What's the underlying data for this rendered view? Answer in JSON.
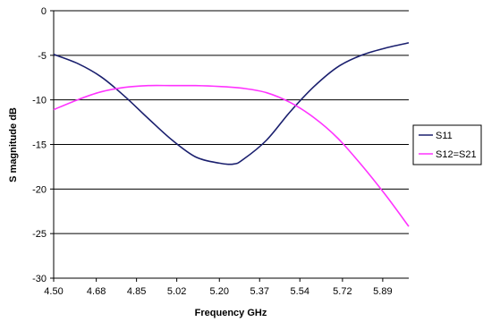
{
  "chart_data": {
    "type": "line",
    "title": "",
    "xlabel": "Frequency GHz",
    "ylabel": "S magnitude dB",
    "xlim": [
      4.5,
      6.0
    ],
    "ylim": [
      -30,
      0
    ],
    "x_ticks": [
      "4.50",
      "4.68",
      "4.85",
      "5.02",
      "5.20",
      "5.37",
      "5.54",
      "5.72",
      "5.89"
    ],
    "x_tick_values": [
      4.5,
      4.68,
      4.85,
      5.02,
      5.2,
      5.37,
      5.54,
      5.72,
      5.89
    ],
    "y_ticks": [
      "0",
      "-5",
      "-10",
      "-15",
      "-20",
      "-25",
      "-30"
    ],
    "y_tick_values": [
      0,
      -5,
      -10,
      -15,
      -20,
      -25,
      -30
    ],
    "grid": "horizontal",
    "legend_position": "right",
    "series": [
      {
        "name": "S11",
        "color": "#1a1f6e",
        "x": [
          4.5,
          4.6,
          4.7,
          4.8,
          4.9,
          5.0,
          5.1,
          5.2,
          5.26,
          5.3,
          5.4,
          5.5,
          5.6,
          5.7,
          5.8,
          5.9,
          6.0
        ],
        "y": [
          -4.9,
          -5.9,
          -7.4,
          -9.6,
          -12.1,
          -14.5,
          -16.4,
          -17.1,
          -17.2,
          -16.7,
          -14.5,
          -11.3,
          -8.5,
          -6.3,
          -5.0,
          -4.2,
          -3.6
        ]
      },
      {
        "name": "S12=S21",
        "color": "#ff33ff",
        "x": [
          4.5,
          4.6,
          4.7,
          4.8,
          4.9,
          5.0,
          5.1,
          5.2,
          5.3,
          5.4,
          5.5,
          5.6,
          5.7,
          5.8,
          5.9,
          6.0
        ],
        "y": [
          -11.1,
          -10.0,
          -9.1,
          -8.6,
          -8.4,
          -8.4,
          -8.4,
          -8.5,
          -8.7,
          -9.2,
          -10.3,
          -12.0,
          -14.3,
          -17.3,
          -20.6,
          -24.2
        ]
      }
    ]
  }
}
